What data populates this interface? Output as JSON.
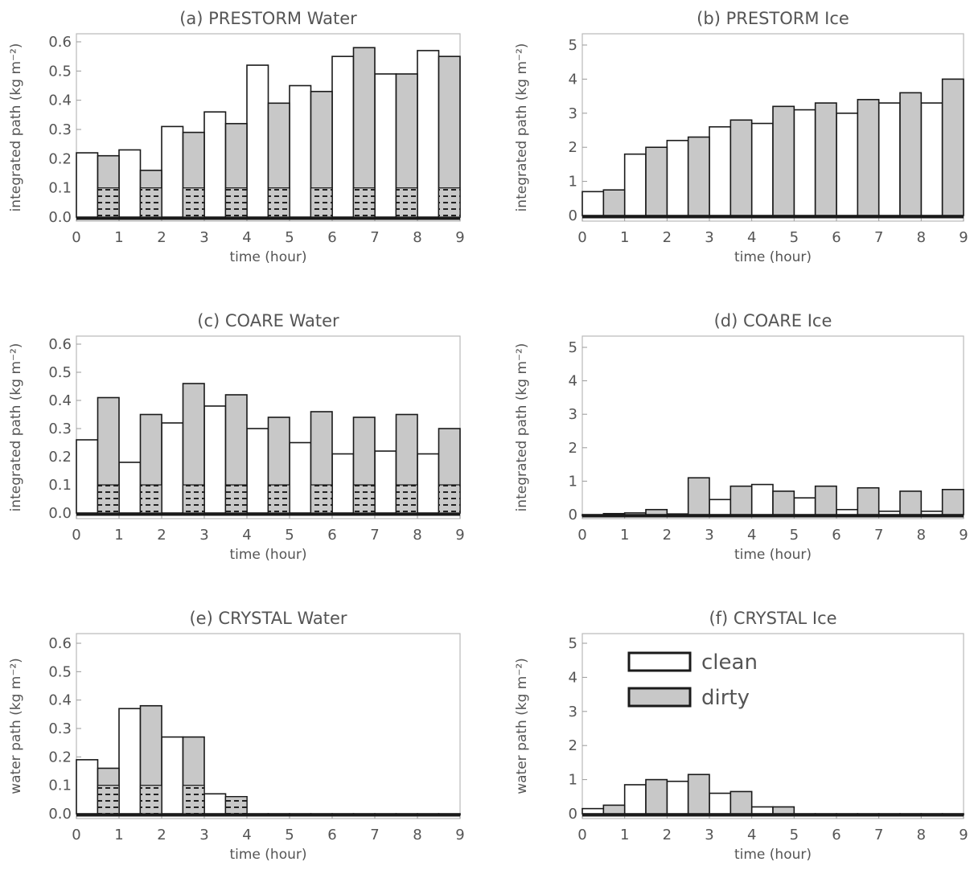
{
  "figure": {
    "colors": {
      "clean": "#ffffff",
      "dirty": "#c8c8c8",
      "outline": "#1a1a1a",
      "text": "#555555",
      "frame": "#b9b9b9"
    }
  },
  "chart_data": [
    {
      "id": "a",
      "type": "bar",
      "title": "(a) PRESTORM Water",
      "xlabel": "time (hour)",
      "ylabel": "integrated path (kg m⁻²)",
      "xlim": [
        0,
        9
      ],
      "ylim": [
        0,
        0.6
      ],
      "xticks": [
        "0",
        "1",
        "2",
        "3",
        "4",
        "5",
        "6",
        "7",
        "8",
        "9"
      ],
      "yticks": [
        "0.0",
        "0.1",
        "0.2",
        "0.3",
        "0.4",
        "0.5",
        "0.6"
      ],
      "ytick_values": [
        0,
        0.1,
        0.2,
        0.3,
        0.4,
        0.5,
        0.6
      ],
      "x": [
        0.25,
        0.75,
        1.25,
        1.75,
        2.25,
        2.75,
        3.25,
        3.75,
        4.25,
        4.75,
        5.25,
        5.75,
        6.25,
        6.75,
        7.25,
        7.75,
        8.25,
        8.75
      ],
      "series": [
        {
          "name": "clean",
          "values": [
            0.22,
            null,
            0.23,
            null,
            0.31,
            null,
            0.36,
            null,
            0.52,
            null,
            0.45,
            null,
            0.55,
            null,
            0.49,
            null,
            0.57,
            null
          ]
        },
        {
          "name": "dirty",
          "values": [
            null,
            0.21,
            null,
            0.16,
            null,
            0.29,
            null,
            0.32,
            null,
            0.39,
            null,
            0.43,
            null,
            0.58,
            null,
            0.49,
            null,
            0.55
          ]
        }
      ],
      "legend": null
    },
    {
      "id": "b",
      "type": "bar",
      "title": "(b) PRESTORM Ice",
      "xlabel": "time (hour)",
      "ylabel": "integrated path (kg m⁻²)",
      "xlim": [
        0,
        9
      ],
      "ylim": [
        0,
        5
      ],
      "xticks": [
        "0",
        "1",
        "2",
        "3",
        "4",
        "5",
        "6",
        "7",
        "8",
        "9"
      ],
      "yticks": [
        "0",
        "1",
        "2",
        "3",
        "4",
        "5"
      ],
      "ytick_values": [
        0,
        1,
        2,
        3,
        4,
        5
      ],
      "x": [
        0.25,
        0.75,
        1.25,
        1.75,
        2.25,
        2.75,
        3.25,
        3.75,
        4.25,
        4.75,
        5.25,
        5.75,
        6.25,
        6.75,
        7.25,
        7.75,
        8.25,
        8.75
      ],
      "series": [
        {
          "name": "clean",
          "values": [
            0.7,
            null,
            1.8,
            null,
            2.2,
            null,
            2.6,
            null,
            2.7,
            null,
            3.1,
            null,
            3.0,
            null,
            3.3,
            null,
            3.3,
            null
          ]
        },
        {
          "name": "dirty",
          "values": [
            null,
            0.75,
            null,
            2.0,
            null,
            2.3,
            null,
            2.8,
            null,
            3.2,
            null,
            3.3,
            null,
            3.4,
            null,
            3.6,
            null,
            4.0
          ]
        }
      ],
      "legend": null
    },
    {
      "id": "c",
      "type": "bar",
      "title": "(c) COARE Water",
      "xlabel": "time (hour)",
      "ylabel": "integrated path (kg m⁻²)",
      "xlim": [
        0,
        9
      ],
      "ylim": [
        0,
        0.6
      ],
      "xticks": [
        "0",
        "1",
        "2",
        "3",
        "4",
        "5",
        "6",
        "7",
        "8",
        "9"
      ],
      "yticks": [
        "0.0",
        "0.1",
        "0.2",
        "0.3",
        "0.4",
        "0.5",
        "0.6"
      ],
      "ytick_values": [
        0,
        0.1,
        0.2,
        0.3,
        0.4,
        0.5,
        0.6
      ],
      "x": [
        0.25,
        0.75,
        1.25,
        1.75,
        2.25,
        2.75,
        3.25,
        3.75,
        4.25,
        4.75,
        5.25,
        5.75,
        6.25,
        6.75,
        7.25,
        7.75,
        8.25,
        8.75
      ],
      "series": [
        {
          "name": "clean",
          "values": [
            0.26,
            null,
            0.18,
            null,
            0.32,
            null,
            0.38,
            null,
            0.3,
            null,
            0.25,
            null,
            0.21,
            null,
            0.22,
            null,
            0.21,
            null
          ]
        },
        {
          "name": "dirty",
          "values": [
            null,
            0.41,
            null,
            0.35,
            null,
            0.46,
            null,
            0.42,
            null,
            0.34,
            null,
            0.36,
            null,
            0.34,
            null,
            0.35,
            null,
            0.3
          ]
        }
      ],
      "legend": null
    },
    {
      "id": "d",
      "type": "bar",
      "title": "(d) COARE Ice",
      "xlabel": "time (hour)",
      "ylabel": "integrated path (kg m⁻²)",
      "xlim": [
        0,
        9
      ],
      "ylim": [
        0,
        5
      ],
      "xticks": [
        "0",
        "1",
        "2",
        "3",
        "4",
        "5",
        "6",
        "7",
        "8",
        "9"
      ],
      "yticks": [
        "0",
        "1",
        "2",
        "3",
        "4",
        "5"
      ],
      "ytick_values": [
        0,
        1,
        2,
        3,
        4,
        5
      ],
      "x": [
        0.25,
        0.75,
        1.25,
        1.75,
        2.25,
        2.75,
        3.25,
        3.75,
        4.25,
        4.75,
        5.25,
        5.75,
        6.25,
        6.75,
        7.25,
        7.75,
        8.25,
        8.75
      ],
      "series": [
        {
          "name": "clean",
          "values": [
            0.0,
            null,
            0.05,
            null,
            0.02,
            null,
            0.45,
            null,
            0.9,
            null,
            0.5,
            null,
            0.15,
            null,
            0.1,
            null,
            0.1,
            null
          ]
        },
        {
          "name": "dirty",
          "values": [
            null,
            0.03,
            null,
            0.15,
            null,
            1.1,
            null,
            0.85,
            null,
            0.7,
            null,
            0.85,
            null,
            0.8,
            null,
            0.7,
            null,
            0.75
          ]
        }
      ],
      "legend": null
    },
    {
      "id": "e",
      "type": "bar",
      "title": "(e) CRYSTAL Water",
      "xlabel": "time (hour)",
      "ylabel": "water path (kg m⁻²)",
      "xlim": [
        0,
        9
      ],
      "ylim": [
        0,
        0.6
      ],
      "xticks": [
        "0",
        "1",
        "2",
        "3",
        "4",
        "5",
        "6",
        "7",
        "8",
        "9"
      ],
      "yticks": [
        "0.0",
        "0.1",
        "0.2",
        "0.3",
        "0.4",
        "0.5",
        "0.6"
      ],
      "ytick_values": [
        0,
        0.1,
        0.2,
        0.3,
        0.4,
        0.5,
        0.6
      ],
      "x": [
        0.25,
        0.75,
        1.25,
        1.75,
        2.25,
        2.75,
        3.25,
        3.75,
        4.25,
        4.75,
        5.25,
        5.75,
        6.25,
        6.75,
        7.25,
        7.75,
        8.25,
        8.75
      ],
      "series": [
        {
          "name": "clean",
          "values": [
            0.19,
            null,
            0.37,
            null,
            0.27,
            null,
            0.07,
            null,
            0.0,
            null,
            0.0,
            null,
            0.0,
            null,
            0.0,
            null,
            0.0,
            null
          ]
        },
        {
          "name": "dirty",
          "values": [
            null,
            0.16,
            null,
            0.38,
            null,
            0.27,
            null,
            0.06,
            null,
            0.0,
            null,
            0.0,
            null,
            0.0,
            null,
            0.0,
            null,
            0.0
          ]
        }
      ],
      "legend": null
    },
    {
      "id": "f",
      "type": "bar",
      "title": "(f) CRYSTAL Ice",
      "xlabel": "time (hour)",
      "ylabel": "water path (kg m⁻²)",
      "xlim": [
        0,
        9
      ],
      "ylim": [
        0,
        5
      ],
      "xticks": [
        "0",
        "1",
        "2",
        "3",
        "4",
        "5",
        "6",
        "7",
        "8",
        "9"
      ],
      "yticks": [
        "0",
        "1",
        "2",
        "3",
        "4",
        "5"
      ],
      "ytick_values": [
        0,
        1,
        2,
        3,
        4,
        5
      ],
      "x": [
        0.25,
        0.75,
        1.25,
        1.75,
        2.25,
        2.75,
        3.25,
        3.75,
        4.25,
        4.75,
        5.25,
        5.75,
        6.25,
        6.75,
        7.25,
        7.75,
        8.25,
        8.75
      ],
      "series": [
        {
          "name": "clean",
          "values": [
            0.15,
            null,
            0.85,
            null,
            0.95,
            null,
            0.6,
            null,
            0.2,
            null,
            0.0,
            null,
            0.0,
            null,
            0.0,
            null,
            0.0,
            null
          ]
        },
        {
          "name": "dirty",
          "values": [
            null,
            0.25,
            null,
            1.0,
            null,
            1.15,
            null,
            0.65,
            null,
            0.2,
            null,
            0.0,
            null,
            0.0,
            null,
            0.0,
            null,
            0.0
          ]
        }
      ],
      "legend": {
        "placement": "top-center",
        "entries": [
          "clean",
          "dirty"
        ]
      }
    }
  ]
}
